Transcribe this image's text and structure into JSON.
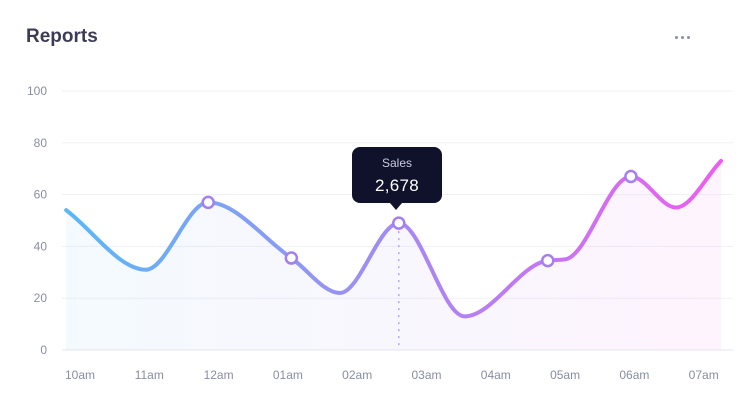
{
  "header": {
    "title": "Reports",
    "menu_icon": "more-horizontal-icon"
  },
  "tooltip": {
    "label": "Sales",
    "value": "2,678"
  },
  "colors": {
    "line_start": "#5ab8f7",
    "line_end": "#ee5df0",
    "marker_stroke": "#a37ff0",
    "tooltip_bg": "#10112b"
  },
  "chart_data": {
    "type": "area",
    "title": "Reports",
    "xlabel": "",
    "ylabel": "",
    "ylim": [
      0,
      100
    ],
    "y_ticks": [
      "100",
      "80",
      "60",
      "40",
      "20",
      "0"
    ],
    "categories": [
      "10am",
      "11am",
      "12am",
      "01am",
      "02am",
      "03am",
      "04am",
      "05am",
      "06am",
      "07am"
    ],
    "x_range": [
      -0.2,
      9.25
    ],
    "grid": true,
    "series": [
      {
        "points": [
          [
            -0.2,
            54
          ],
          [
            0.95,
            31
          ],
          [
            1.85,
            57
          ],
          [
            3.05,
            35.5
          ],
          [
            3.75,
            22
          ],
          [
            4.6,
            49
          ],
          [
            5.55,
            13
          ],
          [
            6.75,
            34.5
          ],
          [
            7.0,
            35
          ],
          [
            7.95,
            67
          ],
          [
            8.6,
            55
          ],
          [
            9.25,
            73
          ]
        ],
        "markers": [
          {
            "x": 1.85,
            "y": 57
          },
          {
            "x": 3.05,
            "y": 35.5
          },
          {
            "x": 4.6,
            "y": 49
          },
          {
            "x": 6.75,
            "y": 34.5
          },
          {
            "x": 7.95,
            "y": 67
          }
        ]
      }
    ],
    "highlight": {
      "x": 4.6,
      "y": 49
    }
  }
}
